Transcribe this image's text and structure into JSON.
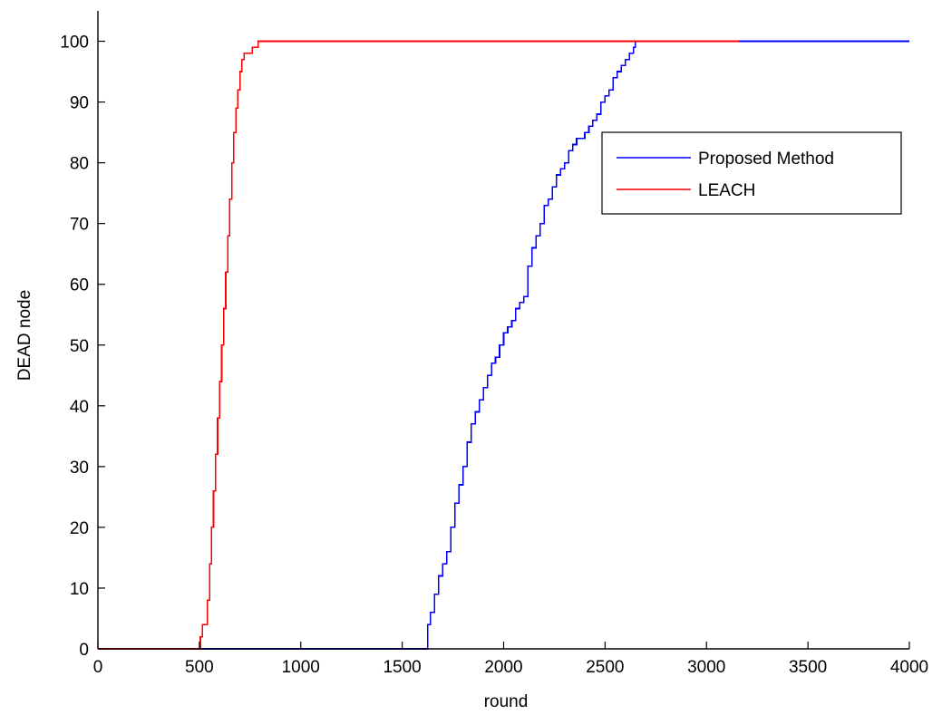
{
  "chart_data": {
    "type": "line",
    "title": "",
    "xlabel": "round",
    "ylabel": "DEAD node",
    "xlim": [
      0,
      4000
    ],
    "ylim": [
      0,
      105
    ],
    "xticks": [
      0,
      500,
      1000,
      1500,
      2000,
      2500,
      3000,
      3500,
      4000
    ],
    "yticks": [
      0,
      10,
      20,
      30,
      40,
      50,
      60,
      70,
      80,
      90,
      100
    ],
    "grid": false,
    "legend_position": "top-right",
    "series": [
      {
        "name": "Proposed Method",
        "color": "#0000ff",
        "step": true,
        "points": [
          [
            0,
            0
          ],
          [
            1620,
            0
          ],
          [
            1625,
            4
          ],
          [
            1640,
            6
          ],
          [
            1660,
            9
          ],
          [
            1680,
            12
          ],
          [
            1700,
            14
          ],
          [
            1720,
            16
          ],
          [
            1740,
            20
          ],
          [
            1760,
            24
          ],
          [
            1780,
            27
          ],
          [
            1800,
            30
          ],
          [
            1820,
            34
          ],
          [
            1840,
            37
          ],
          [
            1860,
            39
          ],
          [
            1880,
            41
          ],
          [
            1900,
            43
          ],
          [
            1920,
            45
          ],
          [
            1940,
            47
          ],
          [
            1960,
            48
          ],
          [
            1980,
            50
          ],
          [
            2000,
            52
          ],
          [
            2020,
            53
          ],
          [
            2040,
            54
          ],
          [
            2060,
            56
          ],
          [
            2080,
            57
          ],
          [
            2100,
            58
          ],
          [
            2120,
            63
          ],
          [
            2140,
            66
          ],
          [
            2160,
            68
          ],
          [
            2180,
            70
          ],
          [
            2200,
            73
          ],
          [
            2220,
            74
          ],
          [
            2240,
            76
          ],
          [
            2260,
            78
          ],
          [
            2280,
            79
          ],
          [
            2300,
            80
          ],
          [
            2320,
            82
          ],
          [
            2340,
            83
          ],
          [
            2360,
            84
          ],
          [
            2380,
            84
          ],
          [
            2400,
            85
          ],
          [
            2420,
            86
          ],
          [
            2440,
            87
          ],
          [
            2460,
            88
          ],
          [
            2480,
            90
          ],
          [
            2500,
            91
          ],
          [
            2520,
            92
          ],
          [
            2540,
            94
          ],
          [
            2560,
            95
          ],
          [
            2580,
            96
          ],
          [
            2600,
            97
          ],
          [
            2620,
            98
          ],
          [
            2640,
            99
          ],
          [
            2650,
            100
          ],
          [
            4000,
            100
          ]
        ]
      },
      {
        "name": "LEACH",
        "color": "#ff0000",
        "step": true,
        "points": [
          [
            0,
            0
          ],
          [
            500,
            0
          ],
          [
            505,
            2
          ],
          [
            515,
            4
          ],
          [
            530,
            4
          ],
          [
            540,
            8
          ],
          [
            550,
            14
          ],
          [
            560,
            20
          ],
          [
            570,
            26
          ],
          [
            580,
            32
          ],
          [
            590,
            38
          ],
          [
            600,
            44
          ],
          [
            610,
            50
          ],
          [
            620,
            56
          ],
          [
            630,
            62
          ],
          [
            640,
            68
          ],
          [
            650,
            74
          ],
          [
            660,
            80
          ],
          [
            670,
            85
          ],
          [
            680,
            89
          ],
          [
            690,
            92
          ],
          [
            700,
            95
          ],
          [
            710,
            97
          ],
          [
            720,
            98
          ],
          [
            740,
            98
          ],
          [
            760,
            99
          ],
          [
            790,
            100
          ],
          [
            3160,
            100
          ]
        ]
      }
    ]
  }
}
